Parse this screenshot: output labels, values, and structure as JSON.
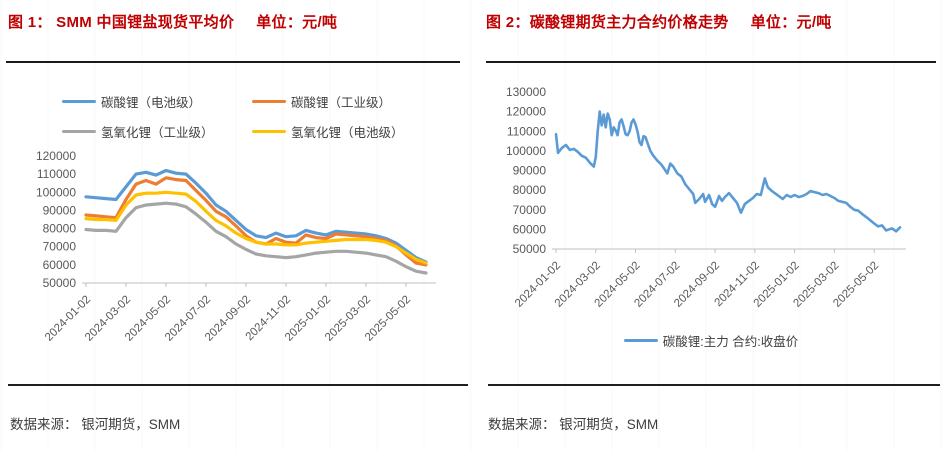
{
  "left_panel": {
    "title": "图 1：  SMM 中国锂盐现货平均价",
    "unit": "单位：元/吨",
    "source": "数据来源： 银河期货，SMM"
  },
  "right_panel": {
    "title": "图 2：碳酸锂期货主力合约价格走势",
    "unit": "单位：元/吨",
    "source": "数据来源： 银河期货，SMM"
  },
  "colors": {
    "title_red": "#C00000",
    "axis_text": "#595959",
    "axis_line": "#BFBFBF",
    "blue": "#5B9BD5",
    "orange": "#ED7D31",
    "gray": "#A5A5A5",
    "yellow": "#FFC000",
    "rule_dark": "#1a1a1a"
  },
  "chart_data": [
    {
      "type": "line",
      "title": "SMM 中国锂盐现货平均价",
      "ylabel": "元/吨",
      "ylim": [
        50000,
        120000
      ],
      "yticks": [
        50000,
        60000,
        70000,
        80000,
        90000,
        100000,
        110000,
        120000
      ],
      "xlim": [
        -0.2,
        17.5
      ],
      "xticks": [
        "2024-01-02",
        "2024-03-02",
        "2024-05-02",
        "2024-07-02",
        "2024-09-02",
        "2024-11-02",
        "2025-01-02",
        "2025-03-02",
        "2025-05-02"
      ],
      "xtick_pos": [
        0,
        2,
        4,
        6,
        8,
        10,
        12,
        14,
        16
      ],
      "grid": false,
      "legend_position": "top",
      "x": [
        0,
        0.5,
        1,
        1.5,
        2,
        2.5,
        3,
        3.5,
        4,
        4.5,
        5,
        5.5,
        6,
        6.5,
        7,
        7.5,
        8,
        8.5,
        9,
        9.5,
        10,
        10.5,
        11,
        11.5,
        12,
        12.5,
        13,
        13.5,
        14,
        14.5,
        15,
        15.5,
        16,
        16.5,
        17
      ],
      "series": [
        {
          "name": "碳酸锂（电池级）",
          "color": "#5B9BD5",
          "values": [
            97500,
            97000,
            96500,
            96000,
            103000,
            110000,
            111000,
            109500,
            112000,
            110500,
            110000,
            105000,
            99500,
            93000,
            89500,
            84500,
            79500,
            76000,
            75000,
            77500,
            75500,
            76000,
            79000,
            77500,
            76500,
            78500,
            78000,
            77500,
            77000,
            76000,
            74500,
            72000,
            68000,
            64000,
            61500
          ]
        },
        {
          "name": "碳酸锂（工业级）",
          "color": "#ED7D31",
          "values": [
            87500,
            87000,
            86500,
            86000,
            96000,
            104500,
            106500,
            104500,
            108000,
            107000,
            106500,
            101000,
            95500,
            89500,
            86500,
            81500,
            76000,
            72500,
            71500,
            74500,
            72500,
            72000,
            76500,
            75000,
            74500,
            77000,
            76500,
            76000,
            75500,
            74500,
            73500,
            70500,
            65500,
            61000,
            60000
          ]
        },
        {
          "name": "氢氧化锂（工业级）",
          "color": "#A5A5A5",
          "values": [
            79500,
            79000,
            79000,
            78500,
            86000,
            91500,
            93000,
            93500,
            94000,
            93500,
            92000,
            88000,
            83500,
            78500,
            75500,
            71500,
            68500,
            66000,
            65000,
            64500,
            64000,
            64500,
            65500,
            66500,
            67000,
            67500,
            67500,
            67000,
            66500,
            65500,
            64500,
            62000,
            59000,
            56500,
            55500
          ]
        },
        {
          "name": "氢氧化锂（电池级）",
          "color": "#FFC000",
          "values": [
            85500,
            85000,
            85000,
            84500,
            93000,
            98500,
            99500,
            99500,
            100000,
            99500,
            99000,
            95000,
            89500,
            84500,
            81500,
            77500,
            74500,
            72500,
            71500,
            71500,
            71000,
            71000,
            72000,
            72500,
            73000,
            73500,
            74000,
            74000,
            74000,
            73500,
            72500,
            70000,
            66500,
            63000,
            61000
          ]
        }
      ]
    },
    {
      "type": "line",
      "title": "碳酸锂期货主力合约价格走势",
      "ylabel": "元/吨",
      "ylim": [
        50000,
        130000
      ],
      "yticks": [
        50000,
        60000,
        70000,
        80000,
        90000,
        100000,
        110000,
        120000,
        130000
      ],
      "xlim": [
        -0.2,
        17.6
      ],
      "xticks": [
        "2024-01-02",
        "2024-03-02",
        "2024-05-02",
        "2024-07-02",
        "2024-09-02",
        "2024-11-02",
        "2025-01-02",
        "2025-03-02",
        "2025-05-02"
      ],
      "xtick_pos": [
        0,
        2,
        4,
        6,
        8,
        10,
        12,
        14,
        16
      ],
      "grid": false,
      "legend_position": "bottom",
      "x": [
        0,
        0.1,
        0.3,
        0.5,
        0.7,
        0.9,
        1.1,
        1.3,
        1.5,
        1.7,
        1.9,
        2.0,
        2.1,
        2.2,
        2.3,
        2.4,
        2.5,
        2.6,
        2.7,
        2.8,
        2.9,
        3.0,
        3.1,
        3.2,
        3.3,
        3.4,
        3.5,
        3.6,
        3.7,
        3.8,
        3.9,
        4.0,
        4.1,
        4.2,
        4.3,
        4.4,
        4.5,
        4.6,
        4.75,
        4.9,
        5.1,
        5.3,
        5.5,
        5.6,
        5.75,
        5.9,
        6.1,
        6.3,
        6.5,
        6.7,
        6.9,
        7.0,
        7.2,
        7.4,
        7.5,
        7.7,
        7.85,
        8.0,
        8.2,
        8.35,
        8.5,
        8.7,
        8.9,
        9.1,
        9.3,
        9.5,
        9.7,
        9.9,
        10.1,
        10.3,
        10.5,
        10.65,
        10.8,
        11.0,
        11.2,
        11.4,
        11.6,
        11.8,
        12.0,
        12.2,
        12.4,
        12.6,
        12.8,
        13.0,
        13.2,
        13.4,
        13.6,
        13.8,
        14.0,
        14.2,
        14.4,
        14.6,
        14.8,
        15.0,
        15.2,
        15.5,
        15.7,
        16.0,
        16.2,
        16.4,
        16.6,
        16.9,
        17.1,
        17.3
      ],
      "series": [
        {
          "name": "碳酸锂:主力 合约:收盘价",
          "color": "#5B9BD5",
          "values": [
            108500,
            99000,
            101500,
            103000,
            100500,
            101000,
            99500,
            97500,
            96500,
            94000,
            92000,
            97000,
            110000,
            120000,
            113000,
            118500,
            112000,
            119000,
            116000,
            108000,
            112000,
            110500,
            108000,
            114500,
            116000,
            112500,
            108500,
            108000,
            110000,
            114500,
            116000,
            113500,
            110000,
            104500,
            103000,
            107500,
            107000,
            104000,
            100000,
            97500,
            95000,
            93000,
            90000,
            88500,
            93500,
            92000,
            88500,
            87000,
            83000,
            80500,
            78000,
            73500,
            75500,
            78000,
            74000,
            77500,
            73000,
            71500,
            77000,
            74500,
            76500,
            78500,
            76000,
            73500,
            68500,
            73000,
            74500,
            76000,
            78000,
            77500,
            86000,
            81500,
            80000,
            78500,
            77000,
            75500,
            77500,
            76500,
            77500,
            76500,
            77000,
            78000,
            79500,
            79000,
            78500,
            77500,
            78000,
            77000,
            76000,
            74500,
            74000,
            73500,
            71500,
            70000,
            69500,
            67000,
            65500,
            63000,
            61500,
            62000,
            59500,
            60500,
            59000,
            61000
          ]
        }
      ]
    }
  ]
}
